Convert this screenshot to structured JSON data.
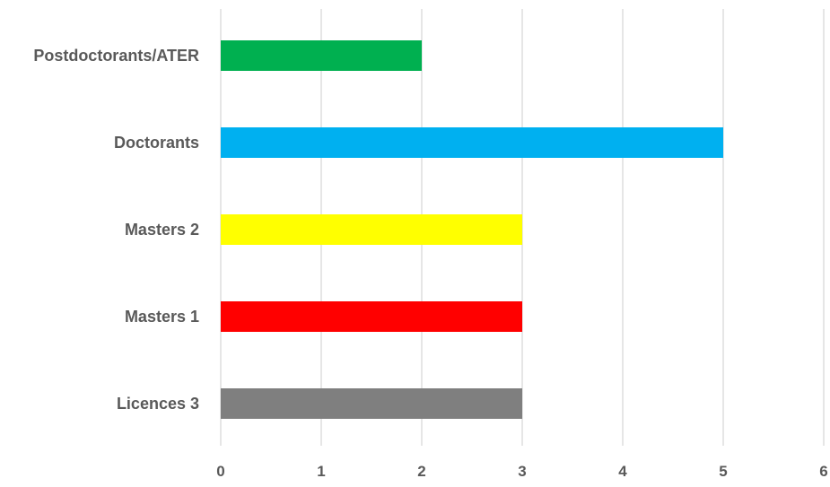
{
  "chart_data": {
    "type": "bar",
    "orientation": "horizontal",
    "title": "",
    "xlabel": "",
    "ylabel": "",
    "xlim": [
      0,
      6
    ],
    "x_ticks": [
      "0",
      "1",
      "2",
      "3",
      "4",
      "5",
      "6"
    ],
    "grid": "vertical",
    "legend": "none",
    "categories": [
      "Postdoctorants/ATER",
      "Doctorants",
      "Masters 2",
      "Masters 1",
      "Licences 3"
    ],
    "values": [
      2,
      5,
      3,
      3,
      3
    ],
    "colors": [
      "#00b050",
      "#00b0f0",
      "#ffff00",
      "#ff0000",
      "#7f7f7f"
    ]
  }
}
